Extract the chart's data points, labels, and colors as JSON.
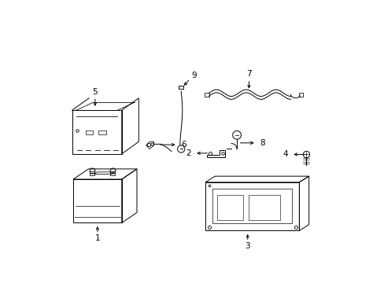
{
  "background_color": "#ffffff",
  "line_color": "#000000",
  "figsize": [
    4.89,
    3.6
  ],
  "dpi": 100
}
